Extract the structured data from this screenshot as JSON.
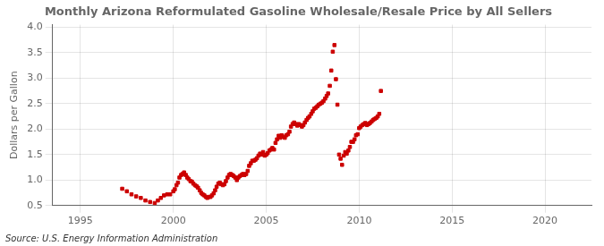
{
  "chart_data": {
    "type": "scatter",
    "title": "Monthly Arizona Reformulated Gasoline Wholesale/Resale Price by All Sellers",
    "ylabel": "Dollars per Gallon",
    "annotations": [
      "Source: U.S. Energy Information Administration"
    ],
    "color": "#cc0000",
    "marker": "square",
    "grid": true,
    "xlim": [
      1993.5,
      2022.5
    ],
    "ylim": [
      0.5,
      4.05
    ],
    "xticks": [
      1995,
      2000,
      2005,
      2010,
      2015,
      2020
    ],
    "yticks": [
      0.5,
      {
        "value": 1.0,
        "label": "1.0"
      },
      1.5,
      {
        "value": 2.0,
        "label": "2.0"
      },
      2.5,
      {
        "value": 3.0,
        "label": "3.0"
      },
      3.5,
      {
        "value": 4.0,
        "label": "4.0"
      }
    ],
    "x": [
      1997.25,
      1997.5,
      1997.75,
      1998.0,
      1998.25,
      1998.5,
      1998.75,
      1999.0,
      1999.17,
      1999.33,
      1999.5,
      1999.67,
      1999.83,
      2000.0,
      2000.08,
      2000.17,
      2000.25,
      2000.33,
      2000.42,
      2000.5,
      2000.58,
      2000.67,
      2000.75,
      2000.83,
      2000.92,
      2001.0,
      2001.08,
      2001.17,
      2001.25,
      2001.33,
      2001.42,
      2001.5,
      2001.58,
      2001.67,
      2001.75,
      2001.83,
      2001.92,
      2002.0,
      2002.08,
      2002.17,
      2002.25,
      2002.33,
      2002.42,
      2002.5,
      2002.58,
      2002.67,
      2002.75,
      2002.83,
      2002.92,
      2003.0,
      2003.08,
      2003.17,
      2003.25,
      2003.33,
      2003.42,
      2003.5,
      2003.58,
      2003.67,
      2003.75,
      2003.83,
      2003.92,
      2004.0,
      2004.08,
      2004.17,
      2004.25,
      2004.33,
      2004.42,
      2004.5,
      2004.58,
      2004.67,
      2004.75,
      2004.83,
      2004.92,
      2005.0,
      2005.08,
      2005.17,
      2005.25,
      2005.33,
      2005.42,
      2005.5,
      2005.58,
      2005.67,
      2005.75,
      2005.83,
      2005.92,
      2006.0,
      2006.08,
      2006.17,
      2006.25,
      2006.33,
      2006.42,
      2006.5,
      2006.58,
      2006.67,
      2006.75,
      2006.83,
      2006.92,
      2007.0,
      2007.08,
      2007.17,
      2007.25,
      2007.33,
      2007.42,
      2007.5,
      2007.58,
      2007.67,
      2007.75,
      2007.83,
      2007.92,
      2008.0,
      2008.08,
      2008.17,
      2008.25,
      2008.33,
      2008.42,
      2008.5,
      2008.58,
      2008.67,
      2008.75,
      2008.83,
      2008.92,
      2009.0,
      2009.08,
      2009.17,
      2009.25,
      2009.33,
      2009.42,
      2009.5,
      2009.58,
      2009.67,
      2009.75,
      2009.83,
      2009.92,
      2010.0,
      2010.08,
      2010.17,
      2010.25,
      2010.33,
      2010.42,
      2010.5,
      2010.58,
      2010.67,
      2010.75,
      2010.83,
      2010.92,
      2011.0,
      2011.08,
      2011.17
    ],
    "values": [
      0.83,
      0.78,
      0.72,
      0.68,
      0.65,
      0.6,
      0.57,
      0.55,
      0.6,
      0.65,
      0.7,
      0.72,
      0.72,
      0.78,
      0.82,
      0.9,
      0.95,
      1.05,
      1.1,
      1.12,
      1.15,
      1.1,
      1.05,
      1.02,
      0.98,
      0.97,
      0.93,
      0.9,
      0.88,
      0.85,
      0.8,
      0.75,
      0.72,
      0.7,
      0.67,
      0.65,
      0.67,
      0.67,
      0.7,
      0.74,
      0.8,
      0.87,
      0.93,
      0.95,
      0.92,
      0.9,
      0.92,
      0.98,
      1.05,
      1.1,
      1.12,
      1.1,
      1.08,
      1.05,
      1.0,
      1.05,
      1.08,
      1.1,
      1.12,
      1.1,
      1.12,
      1.18,
      1.28,
      1.33,
      1.38,
      1.38,
      1.4,
      1.43,
      1.48,
      1.52,
      1.5,
      1.55,
      1.48,
      1.5,
      1.53,
      1.58,
      1.6,
      1.63,
      1.6,
      1.73,
      1.8,
      1.87,
      1.83,
      1.88,
      1.85,
      1.83,
      1.88,
      1.9,
      1.95,
      2.05,
      2.1,
      2.13,
      2.1,
      2.07,
      2.1,
      2.08,
      2.05,
      2.08,
      2.13,
      2.18,
      2.22,
      2.25,
      2.3,
      2.35,
      2.4,
      2.42,
      2.45,
      2.48,
      2.5,
      2.52,
      2.55,
      2.6,
      2.65,
      2.7,
      2.85,
      3.15,
      3.52,
      3.65,
      2.98,
      2.48,
      1.5,
      1.42,
      1.3,
      1.48,
      1.55,
      1.52,
      1.58,
      1.65,
      1.75,
      1.75,
      1.8,
      1.88,
      1.9,
      2.02,
      2.05,
      2.08,
      2.1,
      2.12,
      2.08,
      2.1,
      2.12,
      2.15,
      2.18,
      2.2,
      2.22,
      2.25,
      2.3,
      2.75
    ]
  }
}
